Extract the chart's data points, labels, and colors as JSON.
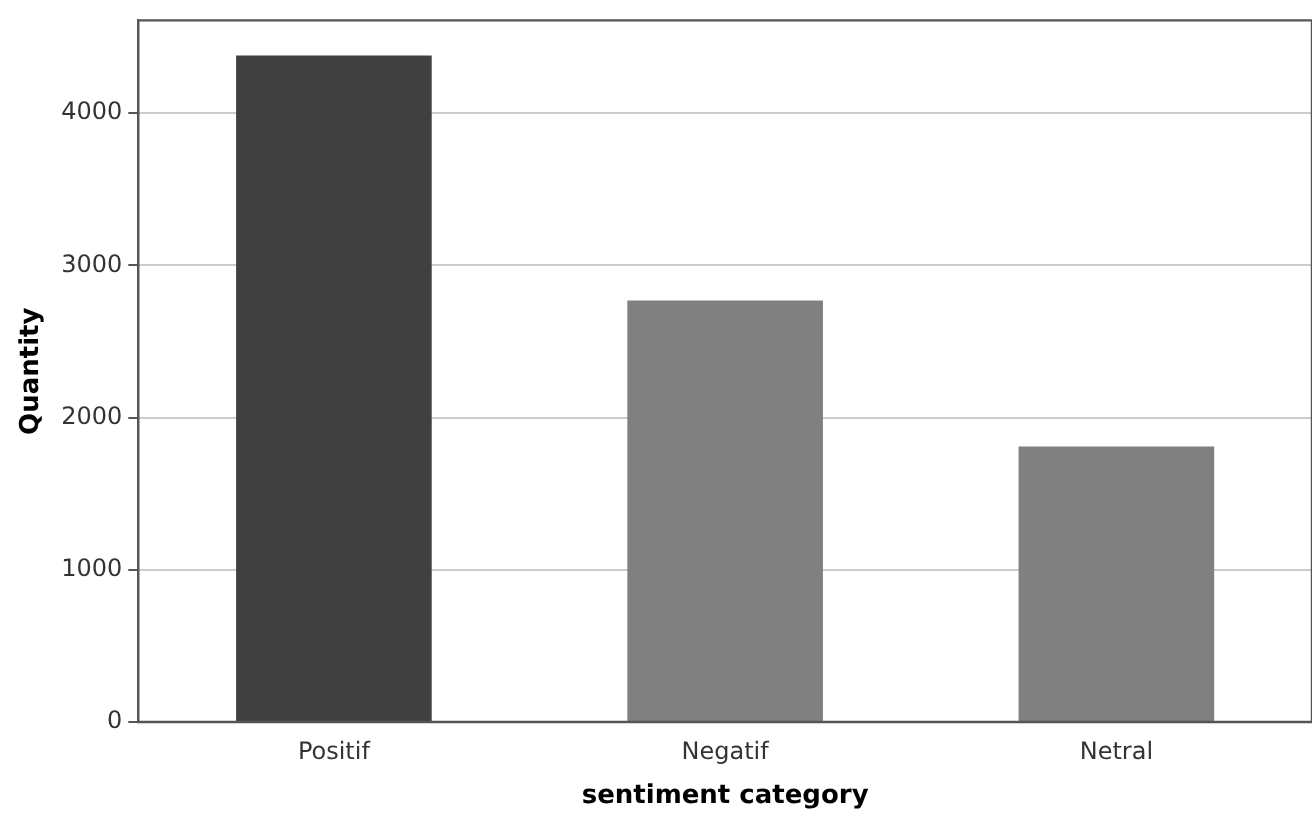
{
  "chart_data": {
    "type": "bar",
    "xlabel": "sentiment category",
    "ylabel": "Quantity",
    "categories": [
      "Positif",
      "Negatif",
      "Netral"
    ],
    "values": [
      4380,
      2770,
      1810
    ],
    "colors": [
      "#404040",
      "#808080",
      "#808080"
    ],
    "ylim": [
      0,
      4610
    ],
    "yticks": [
      0,
      1000,
      2000,
      3000,
      4000
    ],
    "grid": "y",
    "legend": false
  }
}
